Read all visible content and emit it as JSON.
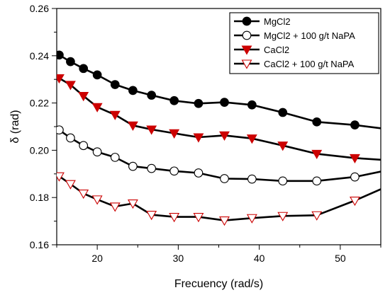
{
  "chart_data": {
    "type": "line",
    "title": "",
    "xlabel": "Frecuency (rad/s)",
    "ylabel": "δ (rad)",
    "xlim": [
      15,
      55
    ],
    "ylim": [
      0.16,
      0.26
    ],
    "x_ticks": [
      20,
      30,
      40,
      50
    ],
    "y_ticks": [
      0.16,
      0.18,
      0.2,
      0.22,
      0.24,
      0.26
    ],
    "y_tick_labels": [
      "0.16",
      "0.18",
      "0.20",
      "0.22",
      "0.24",
      "0.26"
    ],
    "grid": false,
    "legend_position": "top-right",
    "x": [
      15.3,
      16.7,
      18.3,
      20.0,
      22.2,
      24.4,
      26.7,
      29.5,
      32.5,
      35.7,
      39.1,
      42.9,
      47.1,
      51.8
    ],
    "series": [
      {
        "name": "MgCl2",
        "marker": "filled-circle",
        "color": "#000000",
        "values": [
          0.2403,
          0.2375,
          0.2346,
          0.2319,
          0.2278,
          0.2253,
          0.2233,
          0.221,
          0.2198,
          0.2203,
          0.2192,
          0.216,
          0.212,
          0.2107
        ],
        "end": [
          55,
          0.2093
        ]
      },
      {
        "name": "MgCl2  + 100 g/t NaPA",
        "marker": "open-circle",
        "color": "#000000",
        "values": [
          0.2086,
          0.2052,
          0.202,
          0.1993,
          0.197,
          0.1932,
          0.1923,
          0.1912,
          0.1904,
          0.188,
          0.1878,
          0.187,
          0.187,
          0.1887
        ],
        "end": [
          55,
          0.191
        ]
      },
      {
        "name": "CaCl2",
        "marker": "filled-triangle-down",
        "color": "#cc0000",
        "values": [
          0.2305,
          0.2277,
          0.223,
          0.2183,
          0.215,
          0.2105,
          0.2088,
          0.2072,
          0.2055,
          0.2063,
          0.205,
          0.202,
          0.1985,
          0.1967
        ],
        "end": [
          55,
          0.196
        ]
      },
      {
        "name": "CaCl2 + 100 g/t NaPA",
        "marker": "open-triangle-down",
        "color": "#cc0000",
        "values": [
          0.189,
          0.1857,
          0.1817,
          0.1792,
          0.1762,
          0.1775,
          0.1727,
          0.1718,
          0.1718,
          0.1703,
          0.1713,
          0.1722,
          0.1725,
          0.1787
        ],
        "end": [
          55,
          0.1835
        ]
      }
    ]
  }
}
